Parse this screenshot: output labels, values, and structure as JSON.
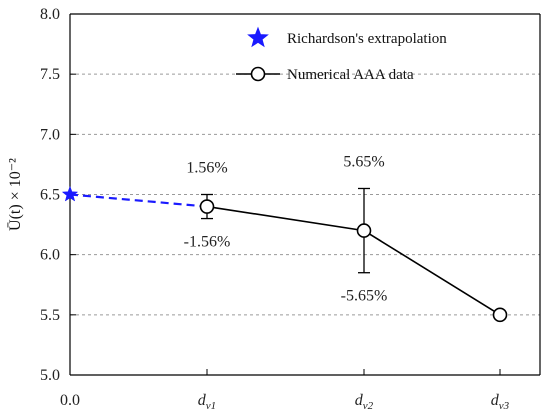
{
  "chart_data": {
    "type": "line",
    "ylabel": "Ū(t) × 10⁻²",
    "ylim": [
      5.0,
      8.0
    ],
    "y_ticks": [
      "5.0",
      "5.5",
      "6.0",
      "6.5",
      "7.0",
      "7.5",
      "8.0"
    ],
    "y_tick_values": [
      5.0,
      5.5,
      6.0,
      6.5,
      7.0,
      7.5,
      8.0
    ],
    "grid": "y-major dashed",
    "x_categories": [
      {
        "label": "0.0",
        "main": "0.0",
        "sub": ""
      },
      {
        "label": "dv1",
        "main": "d",
        "sub": "v1"
      },
      {
        "label": "dv2",
        "main": "d",
        "sub": "v2"
      },
      {
        "label": "dv3",
        "main": "d",
        "sub": "v3"
      }
    ],
    "legend_position": "top-right",
    "series": [
      {
        "name": "Richardson's extrapolation",
        "marker": "star",
        "color": "#1a1aff",
        "points": [
          {
            "x": "0.0",
            "y": 6.5
          }
        ]
      },
      {
        "name": "Numerical AAA data",
        "marker": "open-circle",
        "color": "#000000",
        "points": [
          {
            "x": "dv1",
            "y": 6.4,
            "err_low": 6.3,
            "err_high": 6.5,
            "err_label_high": "1.56%",
            "err_label_low": "-1.56%"
          },
          {
            "x": "dv2",
            "y": 6.2,
            "err_low": 5.85,
            "err_high": 6.55,
            "err_label_high": "5.65%",
            "err_label_low": "-5.65%"
          },
          {
            "x": "dv3",
            "y": 5.5
          }
        ]
      }
    ],
    "connector": {
      "from": "0.0",
      "to": "dv1",
      "style": "dashed",
      "color": "#1a1aff"
    }
  }
}
